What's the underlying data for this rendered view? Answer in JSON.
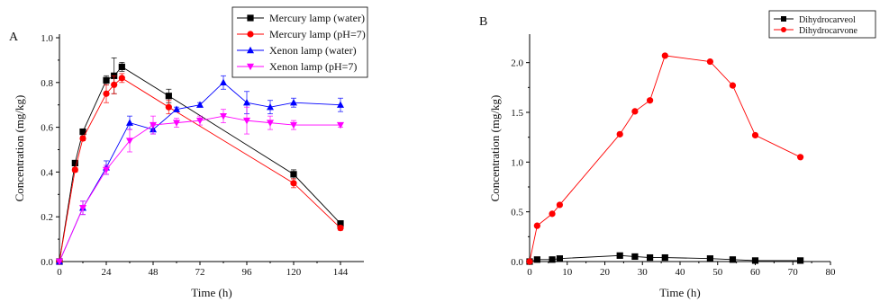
{
  "chart_data": [
    {
      "type": "line",
      "panel_label": "A",
      "title": "",
      "xlabel": "Time (h)",
      "ylabel": "Concentration (mg/kg)",
      "xlim": [
        0,
        156
      ],
      "ylim": [
        0,
        1.0
      ],
      "x_ticks": [
        0,
        24,
        48,
        72,
        96,
        120,
        144
      ],
      "y_ticks": [
        0.0,
        0.2,
        0.4,
        0.6,
        0.8,
        1.0
      ],
      "x_tick_labels": [
        "0",
        "24",
        "48",
        "72",
        "96",
        "120",
        "144"
      ],
      "y_tick_labels": [
        "0.0",
        "0.2",
        "0.4",
        "0.6",
        "0.8",
        "1.0"
      ],
      "grid": false,
      "legend_position": "top-right",
      "series": [
        {
          "name": "Mercury lamp (water)",
          "color": "#000000",
          "marker": "square",
          "x": [
            0,
            8,
            12,
            24,
            28,
            32,
            56,
            120,
            144
          ],
          "y": [
            0.0,
            0.44,
            0.58,
            0.81,
            0.83,
            0.87,
            0.74,
            0.39,
            0.17
          ],
          "err": [
            0,
            0.01,
            0.01,
            0.02,
            0.08,
            0.02,
            0.03,
            0.02,
            0.01
          ]
        },
        {
          "name": "Mercury lamp (pH=7)",
          "color": "#ff0000",
          "marker": "circle",
          "x": [
            0,
            8,
            12,
            24,
            28,
            32,
            56,
            120,
            144
          ],
          "y": [
            0.0,
            0.41,
            0.55,
            0.75,
            0.79,
            0.82,
            0.69,
            0.35,
            0.15
          ],
          "err": [
            0,
            0.01,
            0.01,
            0.04,
            0.04,
            0.02,
            0.03,
            0.02,
            0.01
          ]
        },
        {
          "name": "Xenon lamp (water)",
          "color": "#0000ff",
          "marker": "triangle-up",
          "x": [
            0,
            12,
            24,
            36,
            48,
            60,
            72,
            84,
            96,
            108,
            120,
            144
          ],
          "y": [
            0.0,
            0.24,
            0.42,
            0.62,
            0.59,
            0.68,
            0.7,
            0.8,
            0.71,
            0.69,
            0.71,
            0.7
          ],
          "err": [
            0,
            0.03,
            0.03,
            0.03,
            0.02,
            0.01,
            0.01,
            0.03,
            0.05,
            0.03,
            0.02,
            0.03
          ]
        },
        {
          "name": "Xenon lamp (pH=7)",
          "color": "#ff00ff",
          "marker": "triangle-down",
          "x": [
            0,
            12,
            24,
            36,
            48,
            60,
            72,
            84,
            96,
            108,
            120,
            144
          ],
          "y": [
            0.0,
            0.24,
            0.41,
            0.54,
            0.61,
            0.62,
            0.63,
            0.65,
            0.63,
            0.62,
            0.61,
            0.61
          ],
          "err": [
            0,
            0.03,
            0.02,
            0.05,
            0.04,
            0.02,
            0.02,
            0.03,
            0.06,
            0.03,
            0.02,
            0.01
          ]
        }
      ]
    },
    {
      "type": "line",
      "panel_label": "B",
      "title": "",
      "xlabel": "Time (h)",
      "ylabel": "Concentration (mg/kg)",
      "xlim": [
        0,
        80
      ],
      "ylim": [
        0,
        2.25
      ],
      "x_ticks": [
        0,
        10,
        20,
        30,
        40,
        50,
        60,
        70,
        80
      ],
      "y_ticks": [
        0.0,
        0.5,
        1.0,
        1.5,
        2.0
      ],
      "x_tick_labels": [
        "0",
        "10",
        "20",
        "30",
        "40",
        "50",
        "60",
        "70",
        "80"
      ],
      "y_tick_labels": [
        "0.0",
        "0.5",
        "1.0",
        "1.5",
        "2.0"
      ],
      "grid": false,
      "legend_position": "top-right",
      "series": [
        {
          "name": "Dihydrocarveol",
          "color": "#000000",
          "marker": "square",
          "x": [
            0,
            2,
            6,
            8,
            24,
            28,
            32,
            36,
            48,
            54,
            60,
            72
          ],
          "y": [
            0.0,
            0.02,
            0.02,
            0.03,
            0.06,
            0.05,
            0.04,
            0.04,
            0.03,
            0.02,
            0.01,
            0.01
          ]
        },
        {
          "name": "Dihydrocarvone",
          "color": "#ff0000",
          "marker": "circle",
          "x": [
            0,
            2,
            6,
            8,
            24,
            28,
            32,
            36,
            48,
            54,
            60,
            72
          ],
          "y": [
            0.0,
            0.36,
            0.48,
            0.57,
            1.28,
            1.51,
            1.62,
            2.07,
            2.01,
            1.77,
            1.27,
            1.05
          ]
        }
      ]
    }
  ]
}
